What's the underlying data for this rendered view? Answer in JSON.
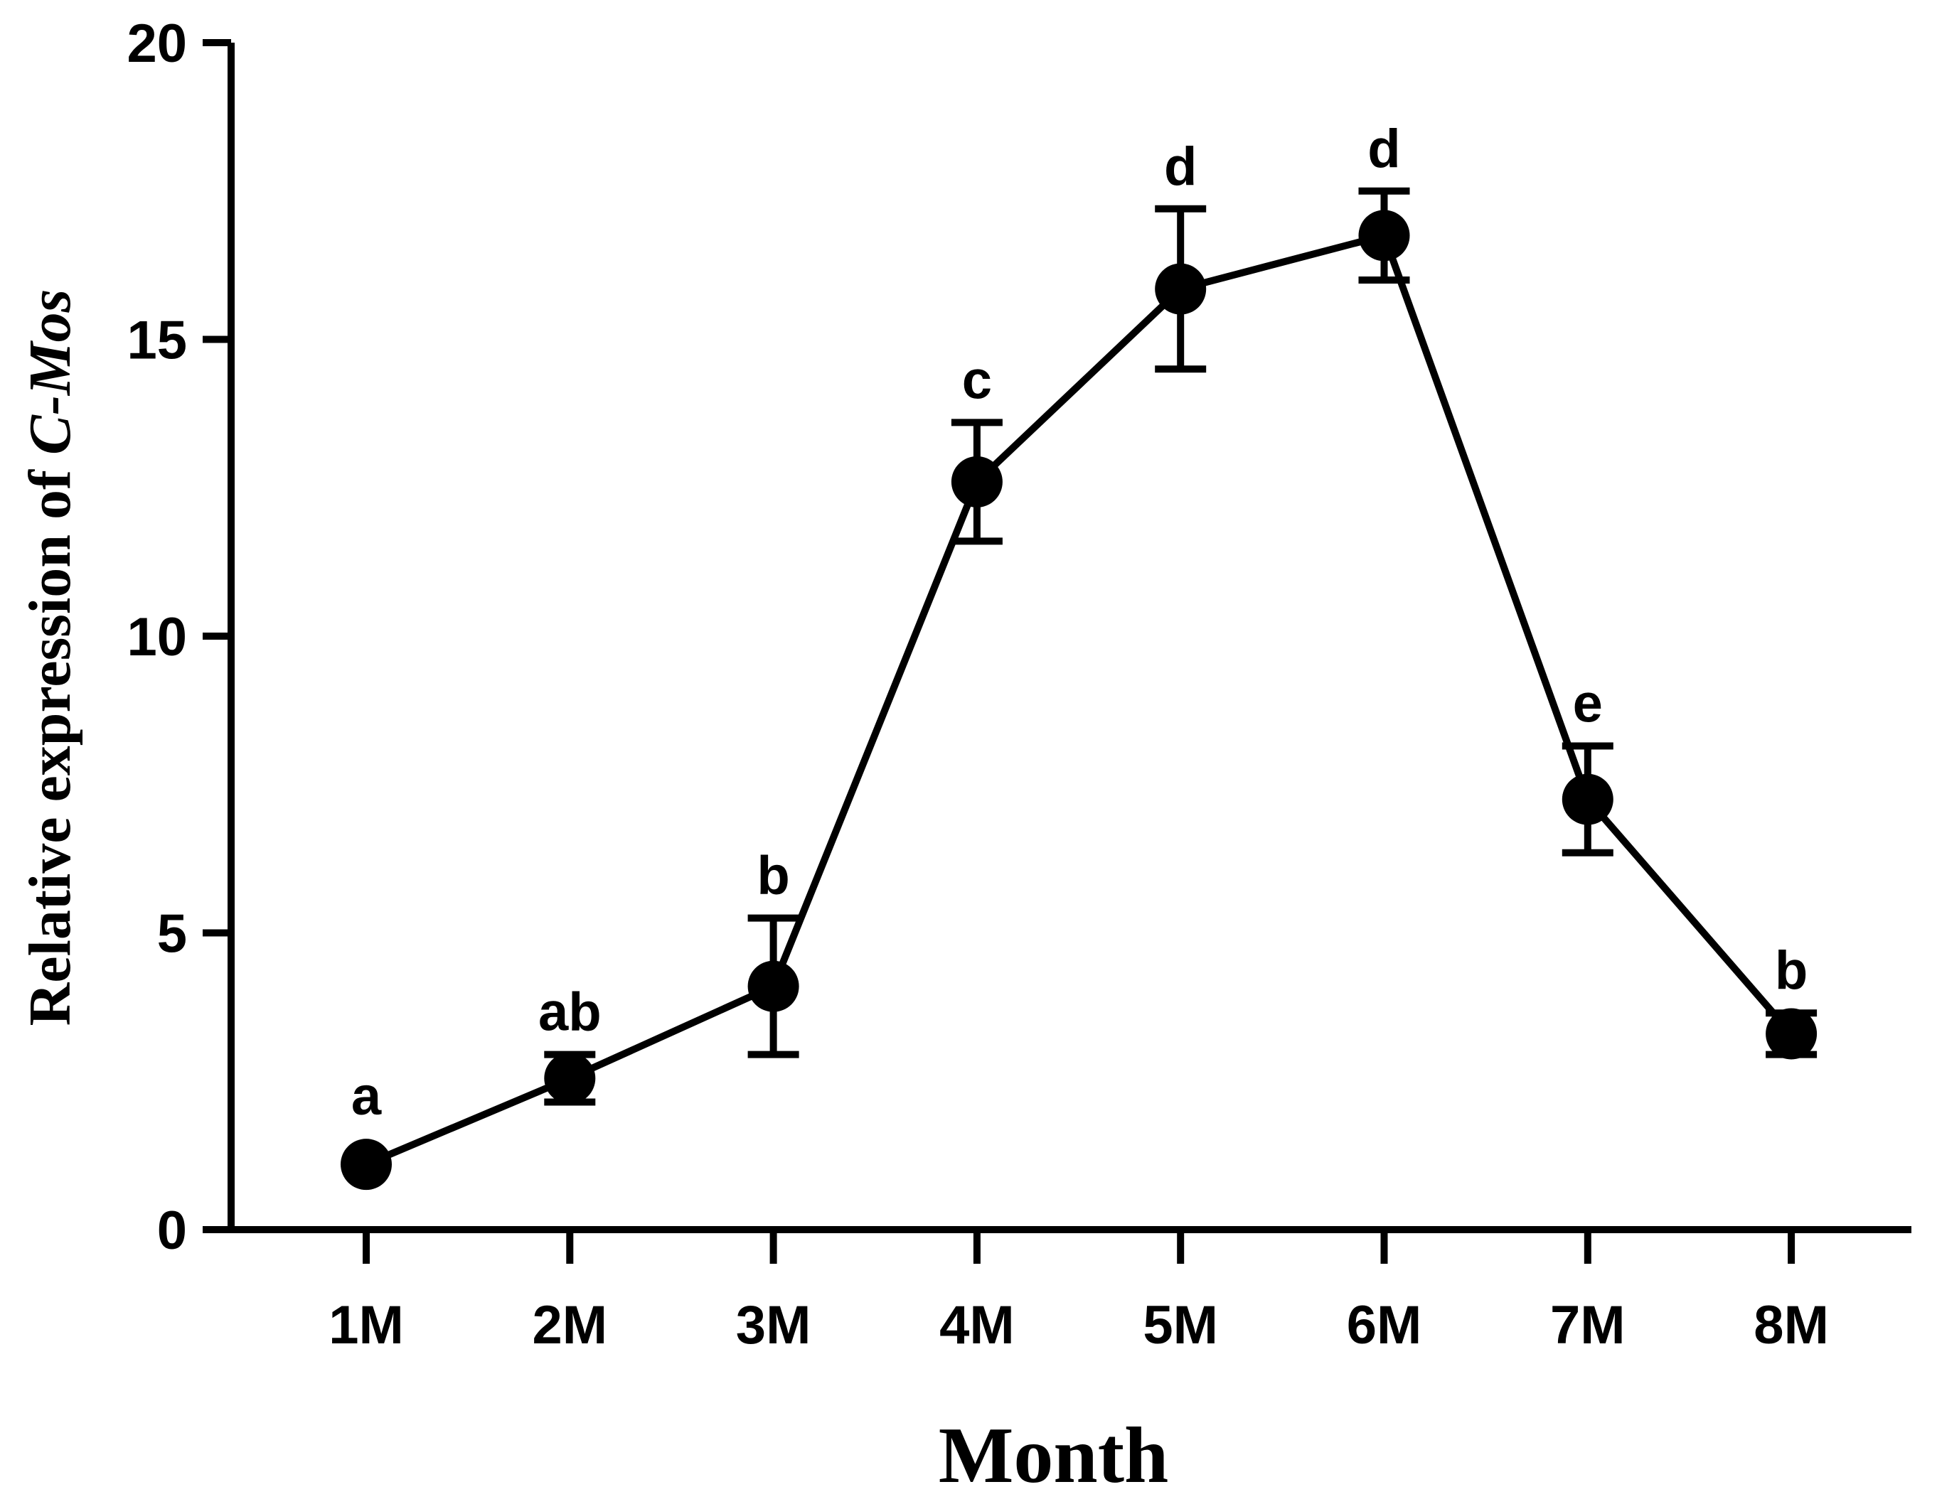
{
  "chart_data": {
    "type": "line",
    "title": "",
    "xlabel": "Month",
    "ylabel_prefix": "Relative expression of ",
    "ylabel_gene": "C-Mos",
    "ylim": [
      0,
      20
    ],
    "yticks": [
      0,
      5,
      10,
      15,
      20
    ],
    "categories": [
      "1M",
      "2M",
      "3M",
      "4M",
      "5M",
      "6M",
      "7M",
      "8M"
    ],
    "series": [
      {
        "name": "C-Mos",
        "values": [
          1.1,
          2.55,
          4.1,
          12.6,
          15.85,
          16.75,
          7.25,
          3.3
        ],
        "error_up": [
          0,
          0.4,
          1.15,
          1.0,
          1.35,
          0.75,
          0.9,
          0.35
        ],
        "error_down": [
          0,
          0.4,
          1.15,
          1.0,
          1.35,
          0.75,
          0.9,
          0.35
        ],
        "significance": [
          "a",
          "ab",
          "b",
          "c",
          "d",
          "d",
          "e",
          "b"
        ]
      }
    ],
    "color": "#000000",
    "grid": false,
    "legend": false
  }
}
